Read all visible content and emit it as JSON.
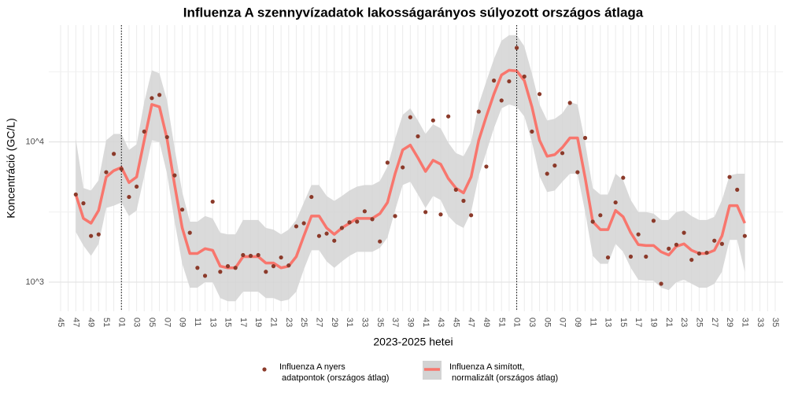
{
  "chart_data": {
    "type": "line",
    "title": "Influenza A szennyvízadatok lakosságarányos súlyozott országos átlaga",
    "x_label": "2023-2025 hetei",
    "y_label": "Koncentráció (GC/L)",
    "log_y": true,
    "grid": true,
    "legend": "bottom",
    "ylim": [
      620,
      68000
    ],
    "yticks": [
      {
        "value": 1000,
        "label": "10^3"
      },
      {
        "value": 10000,
        "label": "10^4"
      }
    ],
    "minor_yticks": [
      3162.28,
      31622.78
    ],
    "year_breaks": [
      8,
      60
    ],
    "categories": [
      "45",
      null,
      "47",
      null,
      "49",
      null,
      "51",
      null,
      "01",
      null,
      "03",
      null,
      "05",
      null,
      "07",
      null,
      "09",
      null,
      "11",
      null,
      "13",
      null,
      "15",
      null,
      "17",
      null,
      "19",
      null,
      "21",
      null,
      "23",
      null,
      "25",
      null,
      "27",
      null,
      "29",
      null,
      "31",
      null,
      "33",
      null,
      "35",
      null,
      "37",
      null,
      "39",
      null,
      "41",
      null,
      "43",
      null,
      "45",
      null,
      "47",
      null,
      "49",
      null,
      "51",
      null,
      "01",
      null,
      "03",
      null,
      "05",
      null,
      "07",
      null,
      "09",
      null,
      "11",
      null,
      "13",
      null,
      "15",
      null,
      "17",
      null,
      "19",
      null,
      "21",
      null,
      "23",
      null,
      "25",
      null,
      "27",
      null,
      "29",
      null,
      "31",
      null,
      "33",
      null,
      "35"
    ],
    "series": [
      {
        "name": "Influenza A nyers\n adatpontok (országos átlag)",
        "style": "points",
        "color": "#8b3a2a",
        "values": [
          null,
          null,
          4217,
          3650,
          2135,
          2190,
          6080,
          8220,
          6410,
          4050,
          4800,
          11850,
          20530,
          21630,
          10820,
          5770,
          3290,
          2250,
          1265,
          1110,
          3750,
          1186,
          1300,
          1265,
          1560,
          1540,
          1560,
          1186,
          1300,
          1500,
          1316,
          2500,
          2630,
          4050,
          2135,
          2220,
          1975,
          2435,
          2670,
          2700,
          3200,
          2810,
          1950,
          7120,
          2960,
          6580,
          15000,
          10960,
          3160,
          14230,
          3040,
          15200,
          4560,
          3800,
          3000,
          16440,
          6670,
          27380,
          19740,
          27040,
          46850,
          29240,
          11850,
          21930,
          5930,
          6780,
          8320,
          18980,
          6080,
          10670,
          2700,
          3000,
          1500,
          3700,
          5550,
          1520,
          2190,
          1520,
          2740,
          974,
          1733,
          1850,
          2250,
          1442,
          1600,
          1620,
          1975,
          1875,
          5620,
          4560,
          2135,
          null,
          null,
          null,
          null
        ]
      },
      {
        "name": "Influenza A simított,\n normalizált (országos átlag)",
        "style": "line",
        "color": "#f8766d",
        "ribbon_color": "#d3d3d3",
        "values": [
          null,
          null,
          4217,
          2848,
          2632,
          3245,
          5623,
          6240,
          6580,
          5130,
          5623,
          10260,
          18500,
          17780,
          10540,
          4930,
          2434,
          1602,
          1602,
          1733,
          1687,
          1299,
          1265,
          1265,
          1520,
          1520,
          1520,
          1369,
          1369,
          1265,
          1299,
          1520,
          2135,
          2962,
          2962,
          2434,
          2193,
          2434,
          2632,
          2848,
          2848,
          2848,
          3081,
          3700,
          5930,
          8770,
          9490,
          7700,
          6160,
          7400,
          6930,
          5480,
          4680,
          4330,
          5623,
          10260,
          15200,
          21930,
          30000,
          32450,
          32060,
          27380,
          17780,
          10260,
          7900,
          8110,
          9120,
          10670,
          10670,
          5550,
          2700,
          2370,
          2370,
          3245,
          2924,
          2250,
          1850,
          1825,
          1825,
          1644,
          1560,
          1800,
          1875,
          1687,
          1602,
          1602,
          1687,
          2135,
          3510,
          3510,
          2632,
          null,
          null,
          null,
          null
        ],
        "lower": [
          null,
          null,
          2280,
          1825,
          1540,
          1875,
          3376,
          3510,
          3700,
          2962,
          3245,
          5700,
          10260,
          10000,
          5930,
          2700,
          1351,
          913,
          913,
          1000,
          1000,
          770,
          731,
          731,
          855,
          855,
          855,
          770,
          770,
          731,
          750,
          855,
          1233,
          1687,
          1687,
          1405,
          1265,
          1405,
          1540,
          1644,
          1644,
          1644,
          1754,
          2080,
          3245,
          4930,
          5200,
          4217,
          3376,
          4110,
          3848,
          2962,
          2600,
          2434,
          3162,
          5700,
          8440,
          12500,
          17330,
          18500,
          17780,
          15200,
          10000,
          5700,
          4385,
          4500,
          5200,
          5930,
          5930,
          3162,
          1540,
          1351,
          1351,
          1875,
          1644,
          1265,
          1040,
          1026,
          1026,
          913,
          877,
          1000,
          1040,
          974,
          913,
          913,
          974,
          1186,
          2000,
          2000,
          1186,
          null,
          null,
          null,
          null
        ],
        "upper": [
          null,
          null,
          10540,
          4684,
          4500,
          5335,
          10260,
          11400,
          11400,
          8770,
          9610,
          19230,
          32450,
          30820,
          19740,
          9000,
          4385,
          2700,
          2700,
          2962,
          2848,
          2250,
          2193,
          2193,
          2773,
          2773,
          2773,
          2434,
          2371,
          2193,
          2371,
          2773,
          3700,
          4930,
          4930,
          4110,
          3797,
          4110,
          4500,
          4805,
          4930,
          4930,
          5268,
          6668,
          10540,
          15600,
          17330,
          14230,
          11400,
          13340,
          12500,
          9870,
          8320,
          7900,
          10000,
          18500,
          27040,
          39000,
          52680,
          57680,
          57680,
          48080,
          30820,
          18500,
          14230,
          14620,
          16010,
          19230,
          18500,
          9870,
          4684,
          4217,
          4217,
          5930,
          5335,
          3848,
          3162,
          3162,
          3081,
          2773,
          2773,
          3162,
          3245,
          2962,
          2773,
          2773,
          2924,
          3848,
          5770,
          5930,
          5930,
          null,
          null,
          null,
          null
        ]
      }
    ]
  }
}
